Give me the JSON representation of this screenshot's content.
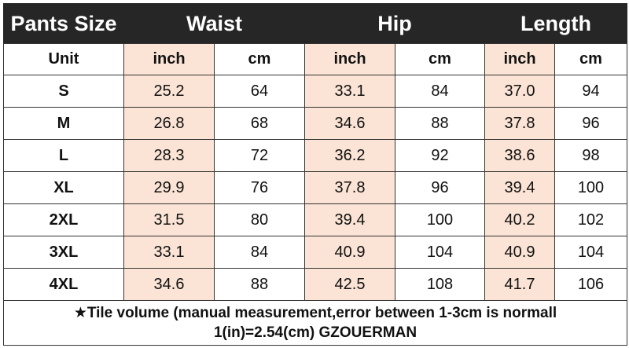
{
  "header": [
    "Pants Size",
    "Waist",
    "Hip",
    "Length"
  ],
  "units": [
    "Unit",
    "inch",
    "cm",
    "inch",
    "cm",
    "inch",
    "cm"
  ],
  "rows": [
    [
      "S",
      "25.2",
      "64",
      "33.1",
      "84",
      "37.0",
      "94"
    ],
    [
      "M",
      "26.8",
      "68",
      "34.6",
      "88",
      "37.8",
      "96"
    ],
    [
      "L",
      "28.3",
      "72",
      "36.2",
      "92",
      "38.6",
      "98"
    ],
    [
      "XL",
      "29.9",
      "76",
      "37.8",
      "96",
      "39.4",
      "100"
    ],
    [
      "2XL",
      "31.5",
      "80",
      "39.4",
      "100",
      "40.2",
      "102"
    ],
    [
      "3XL",
      "33.1",
      "84",
      "40.9",
      "104",
      "40.9",
      "104"
    ],
    [
      "4XL",
      "34.6",
      "88",
      "42.5",
      "108",
      "41.7",
      "106"
    ]
  ],
  "footer": [
    "★Tile volume (manual measurement,error between 1-3cm is normall",
    "1(in)=2.54(cm) GZOUERMAN"
  ]
}
